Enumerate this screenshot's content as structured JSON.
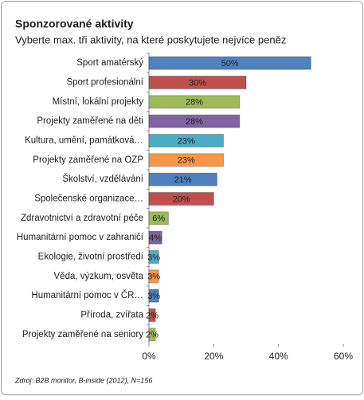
{
  "chart_data": {
    "type": "bar",
    "orientation": "horizontal",
    "title": "Sponzorované aktivity",
    "subtitle": "Vyberte max. tři aktivity, na které poskytujete nejvíce peněz",
    "categories": [
      "Sport amatérský",
      "Sport profesionální",
      "Místní, lokální projekty",
      "Projekty zaměřené na děti",
      "Kultura, umění, památková…",
      "Projekty zaměřené na OZP",
      "Školství, vzdělávání",
      "Společenské organizace…",
      "Zdravotnictví a zdravotní péče",
      "Humanitární pomoc v zahraničí",
      "Ekologie, životní prostředí",
      "Věda, výzkum, osvěta",
      "Humanitární pomoc v ČR…",
      "Příroda, zvířata",
      "Projekty zaměřené na seniory"
    ],
    "values": [
      50,
      30,
      28,
      28,
      23,
      23,
      21,
      20,
      6,
      4,
      3,
      3,
      3,
      2,
      2
    ],
    "value_labels": [
      "50%",
      "30%",
      "28%",
      "28%",
      "23%",
      "23%",
      "21%",
      "20%",
      "6%",
      "4%",
      "3%",
      "3%",
      "3%",
      "2%",
      "2%"
    ],
    "colors": [
      "#4f81bd",
      "#c0504d",
      "#9bbb59",
      "#8064a2",
      "#4bacc6",
      "#f79646",
      "#4f81bd",
      "#c0504d",
      "#9bbb59",
      "#8064a2",
      "#4bacc6",
      "#f79646",
      "#4f81bd",
      "#c0504d",
      "#9bbb59"
    ],
    "xlim": [
      0,
      60
    ],
    "xticks": [
      {
        "value": 0,
        "label": "0%"
      },
      {
        "value": 20,
        "label": "20%"
      },
      {
        "value": 40,
        "label": "40%"
      },
      {
        "value": 60,
        "label": "60%"
      }
    ],
    "source": "Zdroj: B2B monitor, B-inside (2012), N=156"
  }
}
